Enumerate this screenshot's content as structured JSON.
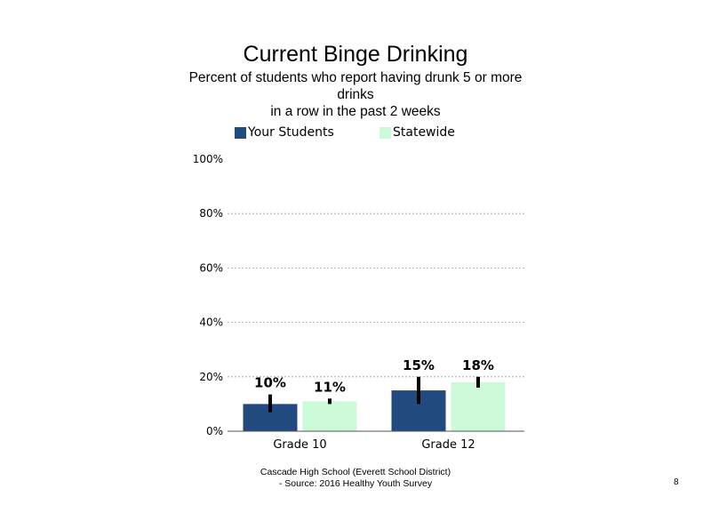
{
  "colors": {
    "your_students": "#214a7f",
    "statewide": "#ccfad8",
    "error_bar": "#000000",
    "gridline": "#b0b0b0"
  },
  "legend": {
    "series_1": "Your Students",
    "series_2": "Statewide"
  },
  "footer": {
    "line1": "Cascade High School (Everett School District)",
    "line2": "- Source: 2016 Healthy  Youth Survey"
  },
  "page_number": "8",
  "chart_data": {
    "type": "bar",
    "title": "Current Binge Drinking",
    "subtitle_line1": "Percent of students  who report having drunk 5 or more",
    "subtitle_line2": "drinks",
    "subtitle_line3": "in a row in the past 2 weeks",
    "categories": [
      "Grade 10",
      "Grade 12"
    ],
    "series": [
      {
        "name": "Your Students",
        "values": [
          10,
          15
        ],
        "labels": [
          "10%",
          "15%"
        ],
        "error_low": [
          7,
          10
        ],
        "error_high": [
          13.5,
          20
        ]
      },
      {
        "name": "Statewide",
        "values": [
          11,
          18
        ],
        "labels": [
          "11%",
          "18%"
        ],
        "error_low": [
          10,
          16
        ],
        "error_high": [
          12,
          20
        ]
      }
    ],
    "ylim": [
      0,
      100
    ],
    "yticks": [
      0,
      20,
      40,
      60,
      80,
      100
    ],
    "ytick_labels": [
      "0%",
      "20%",
      "40%",
      "60%",
      "80%",
      "100%"
    ],
    "grid": true,
    "legend_position": "top"
  }
}
